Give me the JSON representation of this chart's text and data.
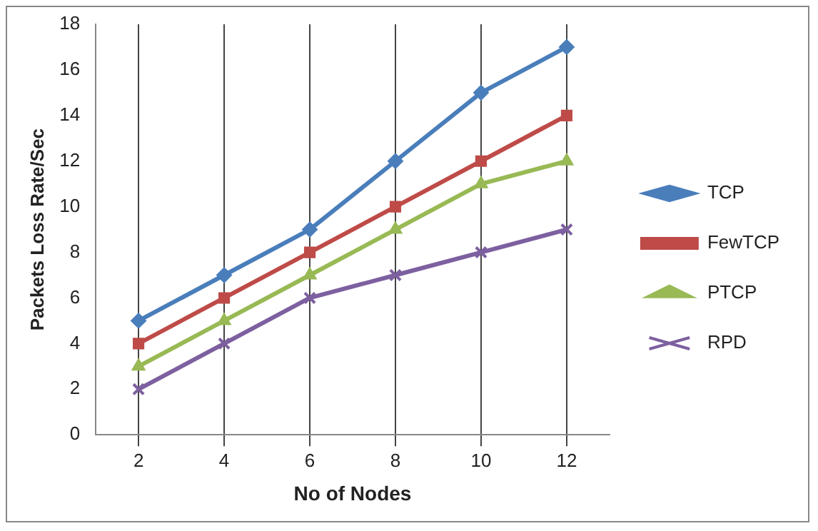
{
  "chart_data": {
    "type": "line",
    "xlabel": "No of Nodes",
    "ylabel": "Packets Loss Rate/Sec",
    "categories": [
      "2",
      "4",
      "6",
      "8",
      "10",
      "12"
    ],
    "series": [
      {
        "name": "TCP",
        "color": "#4a7ebb",
        "marker": "diamond",
        "values": [
          5,
          7,
          9,
          12,
          15,
          17
        ]
      },
      {
        "name": "FewTCP",
        "color": "#be4b48",
        "marker": "square",
        "values": [
          4,
          6,
          8,
          10,
          12,
          14
        ]
      },
      {
        "name": "PTCP",
        "color": "#98b954",
        "marker": "triangle",
        "values": [
          3,
          5,
          7,
          9,
          11,
          12
        ]
      },
      {
        "name": "RPD",
        "color": "#7d60a0",
        "marker": "cross",
        "values": [
          2,
          4,
          6,
          7,
          8,
          9
        ]
      }
    ],
    "ylim": [
      0,
      18
    ],
    "yticks": [
      0,
      2,
      4,
      6,
      8,
      10,
      12,
      14,
      16,
      18
    ],
    "grid": "x",
    "legend": "right",
    "line_style": "solid"
  }
}
